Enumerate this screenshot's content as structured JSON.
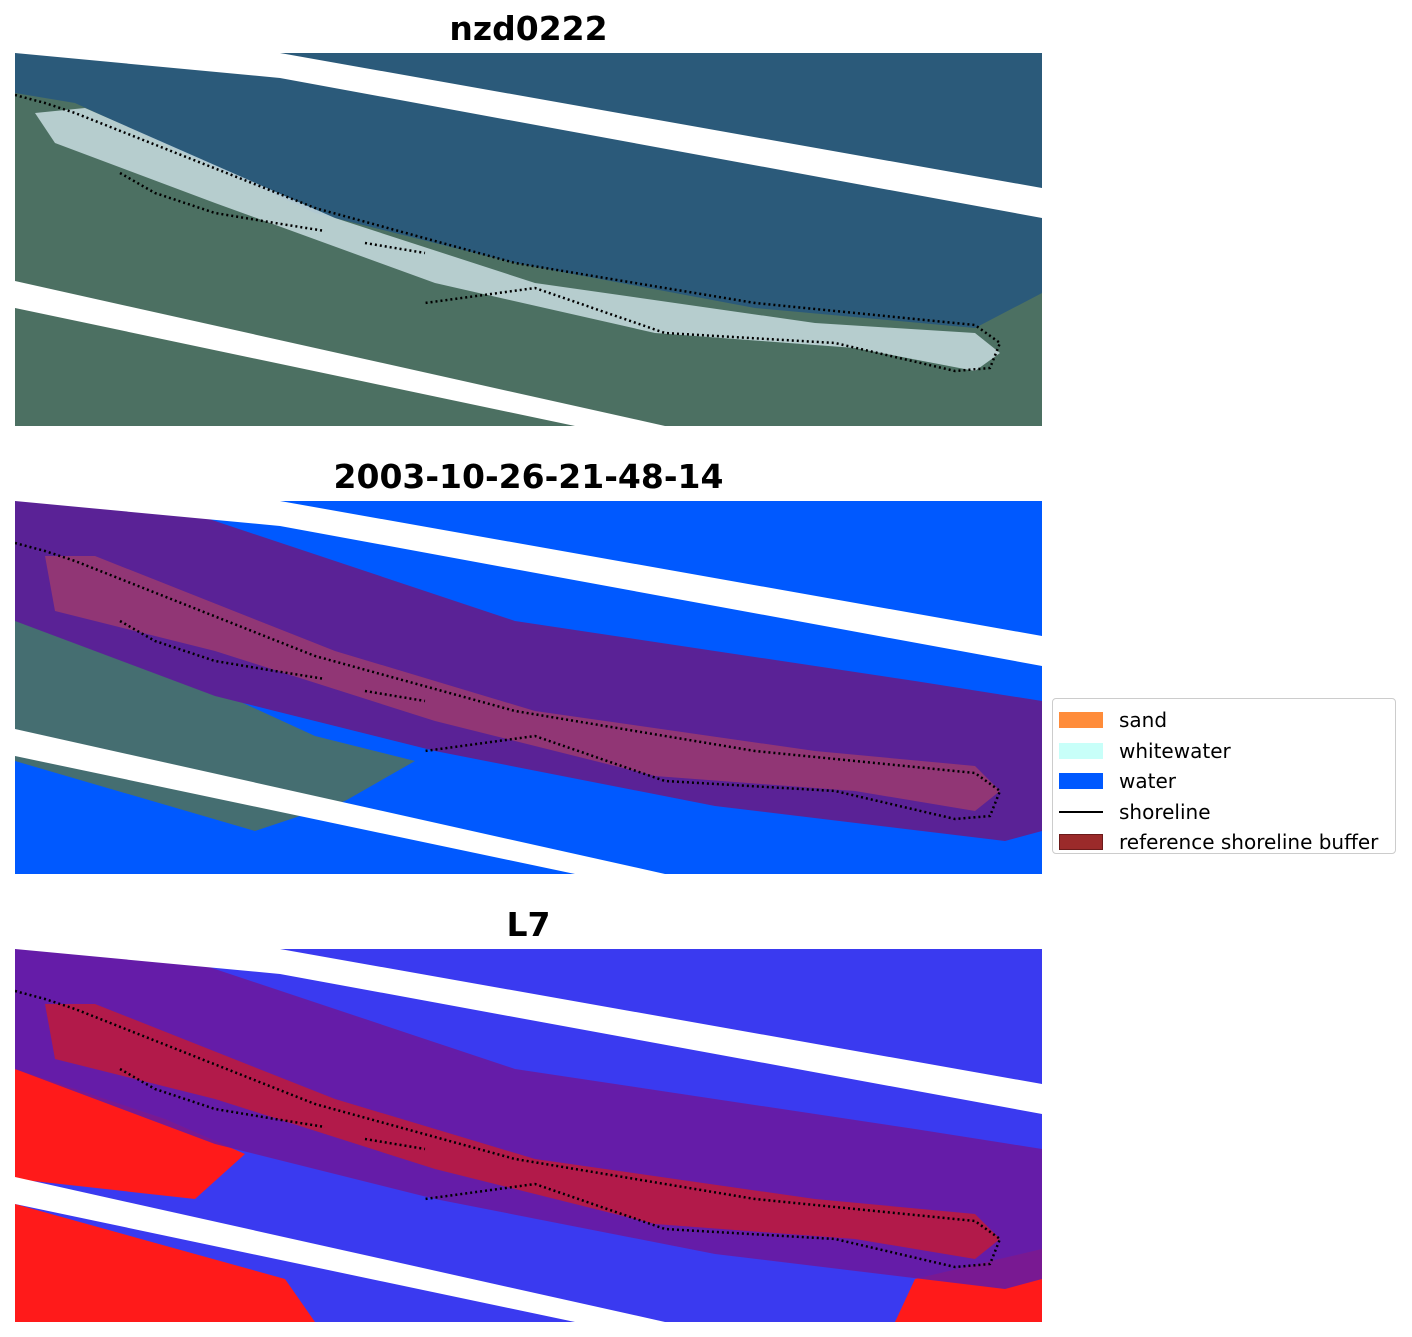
{
  "panels": [
    {
      "title": "nzd0222",
      "kind": "rgb"
    },
    {
      "title": "2003-10-26-21-48-14",
      "kind": "classified"
    },
    {
      "title": "L7",
      "kind": "index"
    }
  ],
  "legend": [
    {
      "label": "sand",
      "color": "#ff8c3a",
      "type": "patch"
    },
    {
      "label": "whitewater",
      "color": "#c8fff9",
      "type": "patch"
    },
    {
      "label": "water",
      "color": "#0059ff",
      "type": "patch"
    },
    {
      "label": "shoreline",
      "color": "#000000",
      "type": "line"
    },
    {
      "label": "reference shoreline buffer",
      "color": "#9b2a2a",
      "type": "patch"
    }
  ],
  "colors": {
    "ocean": "#2b5a7a",
    "land": "#4c7062",
    "beach": "#c9dde2",
    "water_class": "#0059ff",
    "buffer": "#5a2296",
    "index_water": "#3a3af0",
    "index_land": "#ff1a1a"
  }
}
